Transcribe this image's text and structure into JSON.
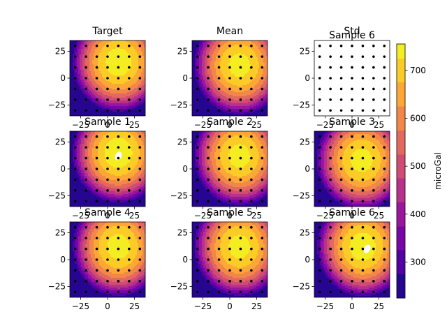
{
  "chart_data": {
    "type": "heatmap",
    "panels": [
      {
        "title": "Target",
        "kind": "field",
        "center": [
          10,
          15
        ],
        "amp": 755,
        "holes": []
      },
      {
        "title": "Mean",
        "kind": "field",
        "center": [
          9,
          12
        ],
        "amp": 745,
        "holes": []
      },
      {
        "title": "Std",
        "kind": "blank",
        "holes": []
      },
      {
        "title": "Sample 1",
        "kind": "field",
        "center": [
          10,
          15
        ],
        "amp": 760,
        "holes": [
          [
            10,
            12
          ]
        ]
      },
      {
        "title": "Sample 2",
        "kind": "field",
        "center": [
          9,
          12
        ],
        "amp": 745,
        "holes": []
      },
      {
        "title": "Sample 3",
        "kind": "field",
        "center": [
          9,
          8
        ],
        "amp": 745,
        "holes": []
      },
      {
        "title": "Sample 4",
        "kind": "field",
        "center": [
          10,
          12
        ],
        "amp": 748,
        "holes": []
      },
      {
        "title": "Sample 5",
        "kind": "field",
        "center": [
          9,
          12
        ],
        "amp": 745,
        "holes": []
      },
      {
        "title": "Sample 6",
        "kind": "field",
        "center": [
          10,
          12
        ],
        "amp": 755,
        "holes": [
          [
            14,
            10
          ]
        ]
      }
    ],
    "overlay_title": "Sample 6",
    "x_ticks": [
      -25,
      0,
      25
    ],
    "y_ticks": [
      25,
      0,
      -25
    ],
    "xlim": [
      -35,
      35
    ],
    "ylim": [
      -35,
      35
    ],
    "station_grid": [
      -30,
      -20,
      -10,
      0,
      10,
      20,
      30
    ],
    "colorbar": {
      "label": "microGal",
      "min": 225,
      "max": 755,
      "ticks": [
        300,
        400,
        500,
        600,
        700
      ],
      "levels": [
        225,
        275,
        325,
        375,
        425,
        475,
        525,
        575,
        625,
        675,
        725,
        755
      ]
    },
    "colormap": [
      "#0d0887",
      "#41049d",
      "#6a00a8",
      "#8f0da4",
      "#b12a90",
      "#cc4778",
      "#e16462",
      "#f2844b",
      "#fca636",
      "#fcce25",
      "#f0f921"
    ]
  }
}
